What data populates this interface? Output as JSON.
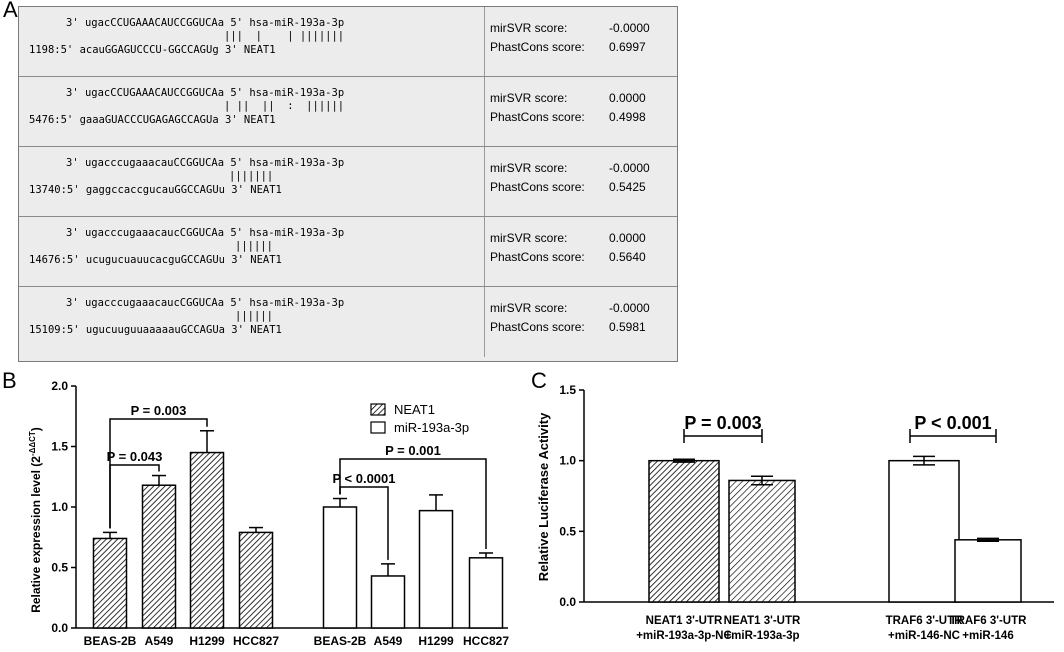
{
  "panel_a": {
    "letter": "A",
    "rows": [
      {
        "mirna": "3' ugacCCUGAAACAUCCGGUCAa 5' hsa-miR-193a-3p",
        "pairs": "|||  |    | |||||||",
        "target": "1198:5' acauGGAGUCCCU-GGCCAGUg 3' NEAT1",
        "mirsvr_label": "mirSVR score:",
        "mirsvr": "-0.0000",
        "phast_label": "PhastCons score:",
        "phast": "0.6997"
      },
      {
        "mirna": "3' ugacCCUGAAACAUCCGGUCAa 5' hsa-miR-193a-3p",
        "pairs": "| ||  ||  :  ||||||",
        "target": "5476:5' gaaaGUACCCUGAGAGCCAGUa 3' NEAT1",
        "mirsvr_label": "mirSVR score:",
        "mirsvr": "0.0000",
        "phast_label": "PhastCons score:",
        "phast": "0.4998"
      },
      {
        "mirna": "3' ugacccugaaacauCCGGUCAa 5' hsa-miR-193a-3p",
        "pairs": "|||||||",
        "target": "13740:5' gaggccaccgucauGGCCAGUu 3' NEAT1",
        "mirsvr_label": "mirSVR score:",
        "mirsvr": "-0.0000",
        "phast_label": "PhastCons score:",
        "phast": "0.5425"
      },
      {
        "mirna": "3' ugacccugaaacaucCGGUCAa 5' hsa-miR-193a-3p",
        "pairs": "||||||",
        "target": "14676:5' ucugucuauucacguGCCAGUu 3' NEAT1",
        "mirsvr_label": "mirSVR score:",
        "mirsvr": "0.0000",
        "phast_label": "PhastCons score:",
        "phast": "0.5640"
      },
      {
        "mirna": "3' ugacccugaaacaucCGGUCAa 5' hsa-miR-193a-3p",
        "pairs": "||||||",
        "target": "15109:5' ugucuuguuaaaaauGCCAGUa 3' NEAT1",
        "mirsvr_label": "mirSVR score:",
        "mirsvr": "-0.0000",
        "phast_label": "PhastCons score:",
        "phast": "0.5981"
      }
    ]
  },
  "chart_data": [
    {
      "panel": "B",
      "type": "bar",
      "ylabel": "Relative expression level (2",
      "ylabel_sup": "-ΔΔCT",
      "ylabel_close": ")",
      "ylim": [
        0,
        2.0
      ],
      "yticks": [
        "0.0",
        "0.5",
        "1.0",
        "1.5",
        "2.0"
      ],
      "categories": [
        "BEAS-2B",
        "A549",
        "H1299",
        "HCC827"
      ],
      "series": [
        {
          "name": "NEAT1",
          "values": [
            0.74,
            1.18,
            1.45,
            0.79
          ],
          "errors": [
            0.05,
            0.08,
            0.18,
            0.04
          ],
          "fill": "hatched"
        },
        {
          "name": "miR-193a-3p",
          "values": [
            1.0,
            0.43,
            0.97,
            0.58
          ],
          "errors": [
            0.07,
            0.1,
            0.13,
            0.04
          ],
          "fill": "white"
        }
      ],
      "annotations": [
        {
          "text": "P = 0.003",
          "series": 0,
          "from": 0,
          "to": 2
        },
        {
          "text": "P = 0.043",
          "series": 0,
          "from": 0,
          "to": 1
        },
        {
          "text": "P < 0.0001",
          "series": 1,
          "from": 0,
          "to": 1
        },
        {
          "text": "P = 0.001",
          "series": 1,
          "from": 0,
          "to": 3
        }
      ]
    },
    {
      "panel": "C",
      "type": "bar",
      "ylabel": "Relative Luciferase Activity",
      "ylim": [
        0,
        1.5
      ],
      "yticks": [
        "0.0",
        "0.5",
        "1.0",
        "1.5"
      ],
      "categories": [
        [
          "NEAT1 3'-UTR",
          "+miR-193a-3p-NC"
        ],
        [
          "NEAT1 3'-UTR",
          "+miR-193a-3p"
        ],
        [
          "TRAF6 3'-UTR",
          "+miR-146-NC"
        ],
        [
          "TRAF6 3'-UTR",
          "+miR-146"
        ]
      ],
      "values": [
        1.0,
        0.86,
        1.0,
        0.44
      ],
      "errors": [
        0.01,
        0.03,
        0.03,
        0.01
      ],
      "fills": [
        "hatched-dense",
        "hatched",
        "white",
        "white"
      ],
      "annotations": [
        {
          "text": "P = 0.003",
          "from": 0,
          "to": 1
        },
        {
          "text": "P < 0.001",
          "from": 2,
          "to": 3
        }
      ]
    }
  ]
}
